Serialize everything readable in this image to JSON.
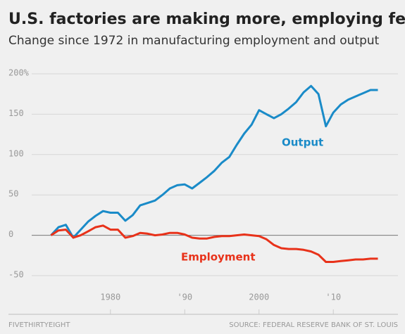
{
  "chart_data": {
    "type": "line",
    "title": "U.S. factories are making more, employing fewer",
    "subtitle": "Change since 1972 in manufacturing employment and output",
    "source": "SOURCE: FEDERAL RESERVE BANK OF ST. LOUIS",
    "brand": "FIVETHIRTYEIGHT",
    "x": [
      1972,
      1973,
      1974,
      1975,
      1976,
      1977,
      1978,
      1979,
      1980,
      1981,
      1982,
      1983,
      1984,
      1985,
      1986,
      1987,
      1988,
      1989,
      1990,
      1991,
      1992,
      1993,
      1994,
      1995,
      1996,
      1997,
      1998,
      1999,
      2000,
      2001,
      2002,
      2003,
      2004,
      2005,
      2006,
      2007,
      2008,
      2009,
      2010,
      2011,
      2012,
      2013,
      2014,
      2015,
      2016
    ],
    "series": [
      {
        "name": "Output",
        "color": "#1a8bc8",
        "values": [
          0,
          10,
          13,
          -3,
          7,
          17,
          24,
          30,
          28,
          28,
          18,
          25,
          37,
          40,
          43,
          50,
          58,
          62,
          63,
          58,
          65,
          72,
          80,
          90,
          97,
          112,
          126,
          137,
          155,
          150,
          145,
          150,
          157,
          165,
          177,
          185,
          175,
          135,
          152,
          162,
          168,
          172,
          176,
          180,
          180
        ]
      },
      {
        "name": "Employment",
        "color": "#e8321a",
        "values": [
          0,
          6,
          7,
          -3,
          0,
          5,
          10,
          12,
          7,
          7,
          -3,
          -1,
          3,
          2,
          0,
          1,
          3,
          3,
          1,
          -3,
          -4,
          -4,
          -2,
          -1,
          -1,
          0,
          1,
          0,
          -1,
          -5,
          -12,
          -16,
          -17,
          -17,
          -18,
          -20,
          -24,
          -33,
          -33,
          -32,
          -31,
          -30,
          -30,
          -29,
          -29
        ]
      }
    ],
    "xlim": [
      1969.4,
      2018.7
    ],
    "xticks": [
      1980,
      {
        "value": 1990,
        "label": "'90"
      },
      2000,
      {
        "value": 2010,
        "label": "'10"
      }
    ],
    "ylim": [
      -50,
      200
    ],
    "yticks": [
      {
        "value": 200,
        "label": "200%"
      },
      150,
      100,
      50,
      0,
      -50
    ],
    "grid": true
  }
}
